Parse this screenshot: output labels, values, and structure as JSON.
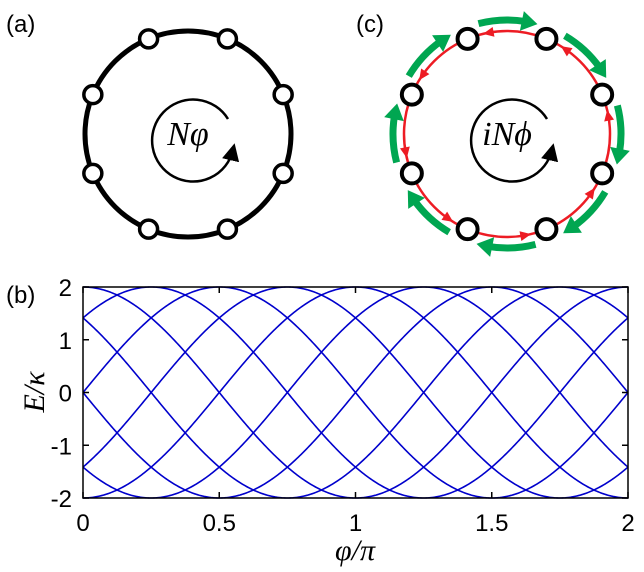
{
  "labels": {
    "panel_a": "(a)",
    "panel_b": "(b)",
    "panel_c": "(c)",
    "flux_a": "Nφ",
    "flux_c": "iNϕ"
  },
  "colors": {
    "ring": "#000000",
    "gain": "#00a651",
    "loss": "#ed1c24",
    "band": "#0000cc"
  },
  "rings": {
    "site_count": 8
  },
  "chart_data": {
    "type": "line",
    "title": "",
    "xlabel": "φ/π",
    "ylabel": "E/κ",
    "xlim": [
      0,
      2
    ],
    "ylim": [
      -2,
      2
    ],
    "xticks": [
      0,
      0.5,
      1,
      1.5,
      2
    ],
    "xtick_labels": [
      "0",
      "0.5",
      "1",
      "1.5",
      "2"
    ],
    "yticks": [
      -2,
      -1,
      0,
      1,
      2
    ],
    "ytick_labels": [
      "-2",
      "-1",
      "0",
      "1",
      "2"
    ],
    "grid": false,
    "line_color": "#0000cc",
    "formula": "E/κ = 2 cos(φ + 2πk/8)",
    "series": [
      {
        "k": 0,
        "x": [
          0,
          0.25,
          0.5,
          0.75,
          1,
          1.25,
          1.5,
          1.75,
          2
        ],
        "y": [
          2,
          1.41,
          0,
          -1.41,
          -2,
          -1.41,
          0,
          1.41,
          2
        ]
      },
      {
        "k": 1,
        "x": [
          0,
          0.25,
          0.5,
          0.75,
          1,
          1.25,
          1.5,
          1.75,
          2
        ],
        "y": [
          1.41,
          0,
          -1.41,
          -2,
          -1.41,
          0,
          1.41,
          2,
          1.41
        ]
      },
      {
        "k": 2,
        "x": [
          0,
          0.25,
          0.5,
          0.75,
          1,
          1.25,
          1.5,
          1.75,
          2
        ],
        "y": [
          0,
          -1.41,
          -2,
          -1.41,
          0,
          1.41,
          2,
          1.41,
          0
        ]
      },
      {
        "k": 3,
        "x": [
          0,
          0.25,
          0.5,
          0.75,
          1,
          1.25,
          1.5,
          1.75,
          2
        ],
        "y": [
          -1.41,
          -2,
          -1.41,
          0,
          1.41,
          2,
          1.41,
          0,
          -1.41
        ]
      },
      {
        "k": 4,
        "x": [
          0,
          0.25,
          0.5,
          0.75,
          1,
          1.25,
          1.5,
          1.75,
          2
        ],
        "y": [
          -2,
          -1.41,
          0,
          1.41,
          2,
          1.41,
          0,
          -1.41,
          -2
        ]
      },
      {
        "k": 5,
        "x": [
          0,
          0.25,
          0.5,
          0.75,
          1,
          1.25,
          1.5,
          1.75,
          2
        ],
        "y": [
          -1.41,
          0,
          1.41,
          2,
          1.41,
          0,
          -1.41,
          -2,
          -1.41
        ]
      },
      {
        "k": 6,
        "x": [
          0,
          0.25,
          0.5,
          0.75,
          1,
          1.25,
          1.5,
          1.75,
          2
        ],
        "y": [
          0,
          1.41,
          2,
          1.41,
          0,
          -1.41,
          -2,
          -1.41,
          0
        ]
      },
      {
        "k": 7,
        "x": [
          0,
          0.25,
          0.5,
          0.75,
          1,
          1.25,
          1.5,
          1.75,
          2
        ],
        "y": [
          1.41,
          2,
          1.41,
          0,
          -1.41,
          -2,
          -1.41,
          0,
          1.41
        ]
      }
    ]
  }
}
